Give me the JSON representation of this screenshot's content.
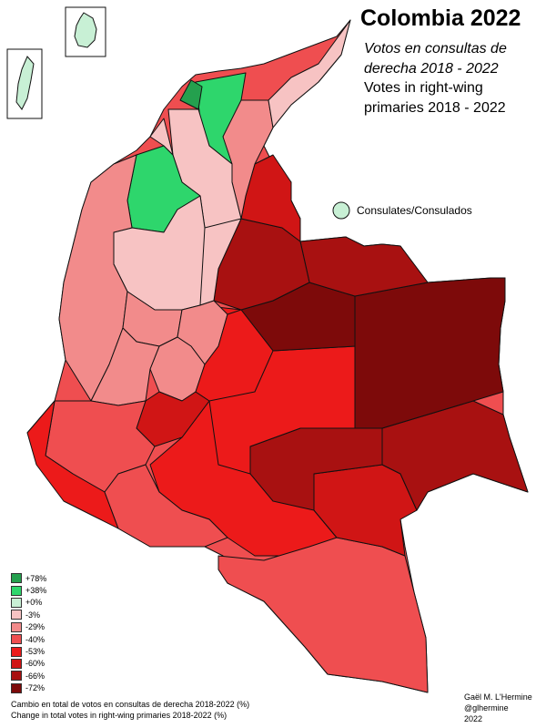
{
  "header": {
    "title": "Colombia 2022",
    "subtitle_es": "Votos en consultas de derecha 2018 - 2022",
    "subtitle_en": "Votes in right-wing primaries 2018 - 2022"
  },
  "consulates_label": "Consulates/Consulados",
  "legend": [
    {
      "label": "+78%",
      "color": "#24a04e"
    },
    {
      "label": "+38%",
      "color": "#2ed66c"
    },
    {
      "label": "+0%",
      "color": "#c8f0d5"
    },
    {
      "label": "-3%",
      "color": "#f7c3c3"
    },
    {
      "label": "-29%",
      "color": "#f28b8b"
    },
    {
      "label": "-40%",
      "color": "#ef4e50"
    },
    {
      "label": "-53%",
      "color": "#ec1a1a"
    },
    {
      "label": "-60%",
      "color": "#d01515"
    },
    {
      "label": "-66%",
      "color": "#a81111"
    },
    {
      "label": "-72%",
      "color": "#7d0a0a"
    }
  ],
  "caption": {
    "es": "Cambio en total de votos en consultas de derecha 2018-2022 (%)",
    "en": "Change in total votes in right-wing primaries 2018-2022 (%)"
  },
  "credits": {
    "author": "Gaël M. L'Hermine",
    "handle": "@glhermine",
    "year": "2022"
  }
}
